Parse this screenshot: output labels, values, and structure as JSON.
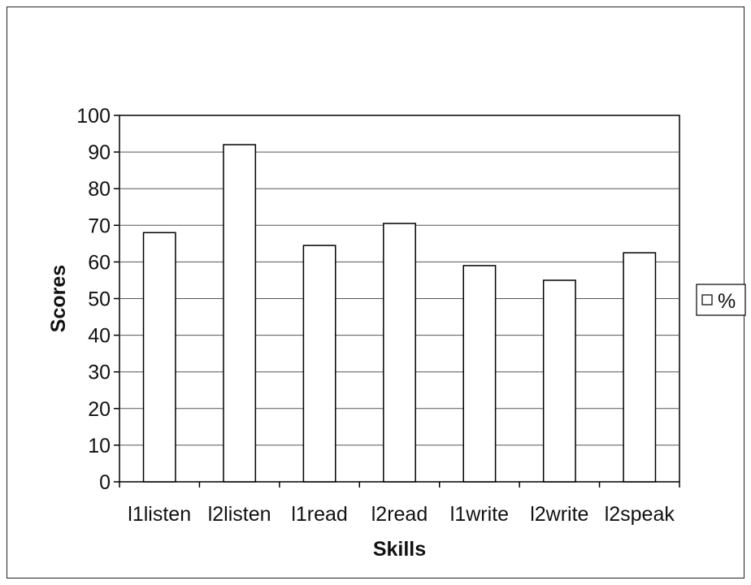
{
  "chart_data": {
    "type": "bar",
    "categories": [
      "l1listen",
      "l2listen",
      "l1read",
      "l2read",
      "l1write",
      "l2write",
      "l2speak"
    ],
    "series": [
      {
        "name": "%",
        "values": [
          68,
          92,
          64.5,
          70.5,
          59,
          55,
          62.5
        ],
        "color": "#ffffff"
      }
    ],
    "xlabel": "Skills",
    "ylabel": "Scores",
    "ylim": [
      0,
      100
    ],
    "yticks": [
      0,
      10,
      20,
      30,
      40,
      50,
      60,
      70,
      80,
      90,
      100
    ],
    "grid": true,
    "legend": "right"
  }
}
